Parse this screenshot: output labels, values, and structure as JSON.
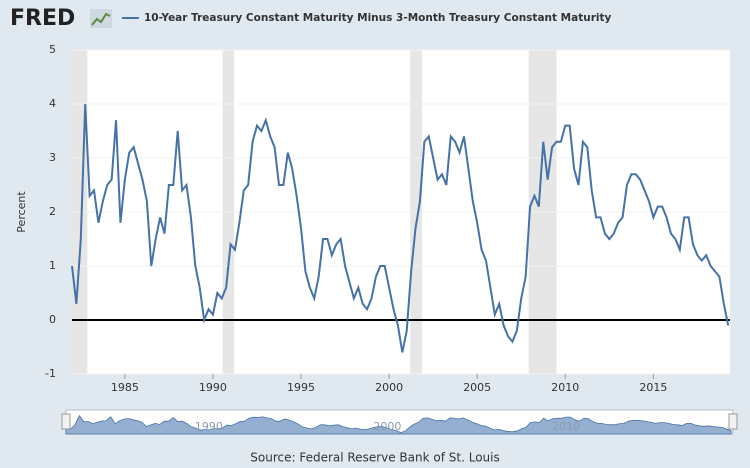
{
  "chart_data": {
    "type": "line",
    "logo": "FRED",
    "source": "Source: Federal Reserve Bank of St. Louis",
    "ylabel": "Percent",
    "xlim": [
      1982.0,
      2019.35
    ],
    "ylim": [
      -1,
      5
    ],
    "xticks": [
      1985,
      1990,
      1995,
      2000,
      2005,
      2010,
      2015
    ],
    "yticks": [
      -1,
      0,
      1,
      2,
      3,
      4,
      5
    ],
    "grid": true,
    "reference_line": 0,
    "recessions": [
      [
        1982.0,
        1982.87
      ],
      [
        1990.55,
        1991.2
      ],
      [
        2001.2,
        2001.87
      ],
      [
        2007.92,
        2009.5
      ]
    ],
    "navigator": {
      "xticks": [
        1990,
        2000,
        2010
      ]
    },
    "x": [
      1982,
      1982.25,
      1982.5,
      1982.75,
      1983,
      1983.25,
      1983.5,
      1983.75,
      1984,
      1984.25,
      1984.5,
      1984.75,
      1985,
      1985.25,
      1985.5,
      1985.75,
      1986,
      1986.25,
      1986.5,
      1986.75,
      1987,
      1987.25,
      1987.5,
      1987.75,
      1988,
      1988.25,
      1988.5,
      1988.75,
      1989,
      1989.25,
      1989.5,
      1989.75,
      1990,
      1990.25,
      1990.5,
      1990.75,
      1991,
      1991.25,
      1991.5,
      1991.75,
      1992,
      1992.25,
      1992.5,
      1992.75,
      1993,
      1993.25,
      1993.5,
      1993.75,
      1994,
      1994.25,
      1994.5,
      1994.75,
      1995,
      1995.25,
      1995.5,
      1995.75,
      1996,
      1996.25,
      1996.5,
      1996.75,
      1997,
      1997.25,
      1997.5,
      1997.75,
      1998,
      1998.25,
      1998.5,
      1998.75,
      1999,
      1999.25,
      1999.5,
      1999.75,
      2000,
      2000.25,
      2000.5,
      2000.75,
      2001,
      2001.25,
      2001.5,
      2001.75,
      2002,
      2002.25,
      2002.5,
      2002.75,
      2003,
      2003.25,
      2003.5,
      2003.75,
      2004,
      2004.25,
      2004.5,
      2004.75,
      2005,
      2005.25,
      2005.5,
      2005.75,
      2006,
      2006.25,
      2006.5,
      2006.75,
      2007,
      2007.25,
      2007.5,
      2007.75,
      2008,
      2008.25,
      2008.5,
      2008.75,
      2009,
      2009.25,
      2009.5,
      2009.75,
      2010,
      2010.25,
      2010.5,
      2010.75,
      2011,
      2011.25,
      2011.5,
      2011.75,
      2012,
      2012.25,
      2012.5,
      2012.75,
      2013,
      2013.25,
      2013.5,
      2013.75,
      2014,
      2014.25,
      2014.5,
      2014.75,
      2015,
      2015.25,
      2015.5,
      2015.75,
      2016,
      2016.25,
      2016.5,
      2016.75,
      2017,
      2017.25,
      2017.5,
      2017.75,
      2018,
      2018.25,
      2018.5,
      2018.75,
      2019,
      2019.25
    ],
    "series": [
      {
        "name": "10-Year Treasury Constant Maturity Minus 3-Month Treasury Constant Maturity",
        "color": "#4572a7",
        "values": [
          1.0,
          0.3,
          1.5,
          4.0,
          2.3,
          2.4,
          1.8,
          2.2,
          2.5,
          2.6,
          3.7,
          1.8,
          2.6,
          3.1,
          3.2,
          2.9,
          2.6,
          2.2,
          1.0,
          1.5,
          1.9,
          1.6,
          2.5,
          2.5,
          3.5,
          2.4,
          2.5,
          1.9,
          1.0,
          0.6,
          0.0,
          0.2,
          0.1,
          0.5,
          0.4,
          0.6,
          1.4,
          1.3,
          1.8,
          2.4,
          2.5,
          3.3,
          3.6,
          3.5,
          3.7,
          3.4,
          3.2,
          2.5,
          2.5,
          3.1,
          2.8,
          2.3,
          1.7,
          0.9,
          0.6,
          0.4,
          0.8,
          1.5,
          1.5,
          1.2,
          1.4,
          1.5,
          1.0,
          0.7,
          0.4,
          0.6,
          0.3,
          0.2,
          0.4,
          0.8,
          1.0,
          1.0,
          0.6,
          0.2,
          -0.1,
          -0.6,
          -0.2,
          0.9,
          1.7,
          2.2,
          3.3,
          3.4,
          3.0,
          2.6,
          2.7,
          2.5,
          3.4,
          3.3,
          3.1,
          3.4,
          2.8,
          2.2,
          1.8,
          1.3,
          1.1,
          0.6,
          0.1,
          0.3,
          -0.1,
          -0.3,
          -0.4,
          -0.2,
          0.4,
          0.8,
          2.1,
          2.3,
          2.1,
          3.3,
          2.6,
          3.2,
          3.3,
          3.3,
          3.6,
          3.6,
          2.8,
          2.5,
          3.3,
          3.2,
          2.4,
          1.9,
          1.9,
          1.6,
          1.5,
          1.6,
          1.8,
          1.9,
          2.5,
          2.7,
          2.7,
          2.6,
          2.4,
          2.2,
          1.9,
          2.1,
          2.1,
          1.9,
          1.6,
          1.5,
          1.3,
          1.9,
          1.9,
          1.4,
          1.2,
          1.1,
          1.2,
          1.0,
          0.9,
          0.8,
          0.3,
          -0.1
        ]
      }
    ]
  }
}
